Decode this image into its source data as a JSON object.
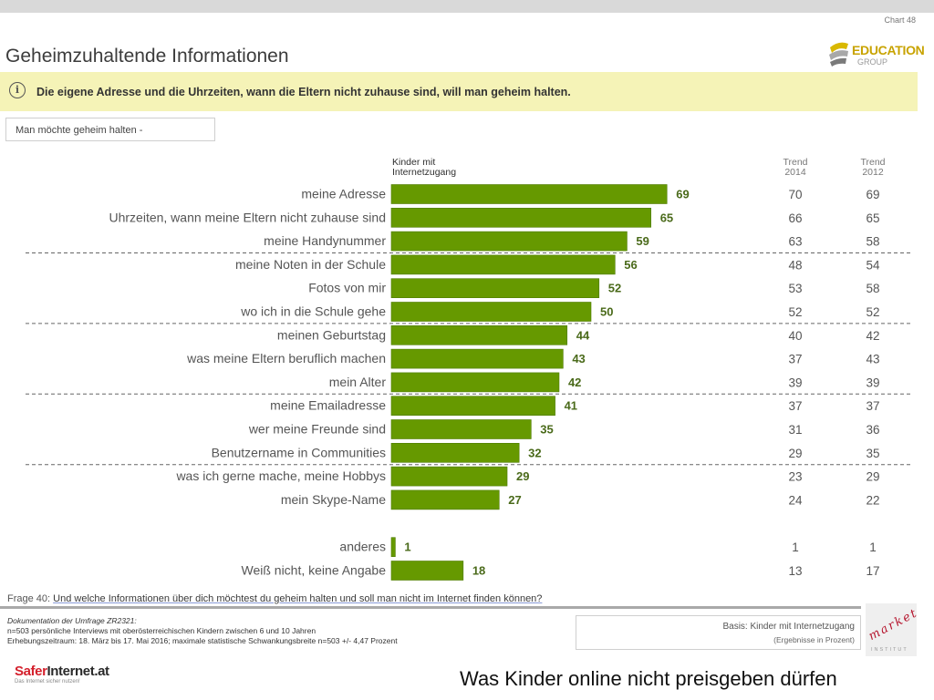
{
  "header": {
    "chart_number": "Chart 48",
    "title": "Geheimzuhaltende Informationen",
    "message": "Die eigene Adresse und die Uhrzeiten, wann die Eltern nicht zuhause sind, will man geheim halten.",
    "subtitle": "Man möchte geheim halten -",
    "logo": {
      "line1": "EDUCATION",
      "line2": "GROUP",
      "accent_color": "#c8a300"
    }
  },
  "columns": {
    "main": "Kinder mit Internetzugang",
    "trend2014": "Trend 2014",
    "trend2012": "Trend 2012"
  },
  "chart_data": {
    "type": "bar",
    "orientation": "horizontal",
    "bar_color": "#669900",
    "categories": [
      "meine Adresse",
      "Uhrzeiten, wann meine Eltern nicht zuhause sind",
      "meine Handynummer",
      "meine Noten in der Schule",
      "Fotos von mir",
      "wo ich in die Schule gehe",
      "meinen Geburtstag",
      "was meine Eltern beruflich machen",
      "mein Alter",
      "meine Emailadresse",
      "wer meine Freunde sind",
      "Benutzername in Communities",
      "was ich gerne mache, meine Hobbys",
      "mein Skype-Name",
      "anderes",
      "Weiß nicht, keine Angabe"
    ],
    "series": [
      {
        "name": "Kinder mit Internetzugang",
        "values": [
          69,
          65,
          59,
          56,
          52,
          50,
          44,
          43,
          42,
          41,
          35,
          32,
          29,
          27,
          1,
          18
        ]
      },
      {
        "name": "Trend 2014",
        "values": [
          70,
          66,
          63,
          48,
          53,
          52,
          40,
          37,
          39,
          37,
          31,
          29,
          23,
          24,
          1,
          13
        ]
      },
      {
        "name": "Trend 2012",
        "values": [
          69,
          65,
          58,
          54,
          58,
          52,
          42,
          43,
          39,
          37,
          36,
          35,
          29,
          22,
          1,
          17
        ]
      }
    ],
    "xlim": [
      0,
      100
    ],
    "separators_after": [
      2,
      5,
      8,
      11
    ],
    "group_break_before": 14
  },
  "footer": {
    "frage_prefix": "Frage 40:",
    "frage_text": "Und welche Informationen über dich möchtest du geheim halten und soll man nicht im Internet finden können?",
    "doc_title": "Dokumentation der Umfrage ZR2321:",
    "doc_line1": "n=503 persönliche Interviews mit oberösterreichischen Kindern zwischen 6 und 10 Jahren",
    "doc_line2": "Erhebungszeitraum: 18. März bis 17. Mai 2016; maximale statistische Schwankungsbreite n=503 +/- 4,47 Prozent",
    "basis": "Basis: Kinder mit Internetzugang",
    "basis_note": "(Ergebnisse in Prozent)",
    "market_logo": "market",
    "market_sub": "INSTITUT",
    "safer_logo_part1": "Safer",
    "safer_logo_part2": "Internet.at",
    "safer_tagline": "Das Internet sicher nutzen!",
    "caption": "Was Kinder online nicht preisgeben dürfen"
  }
}
